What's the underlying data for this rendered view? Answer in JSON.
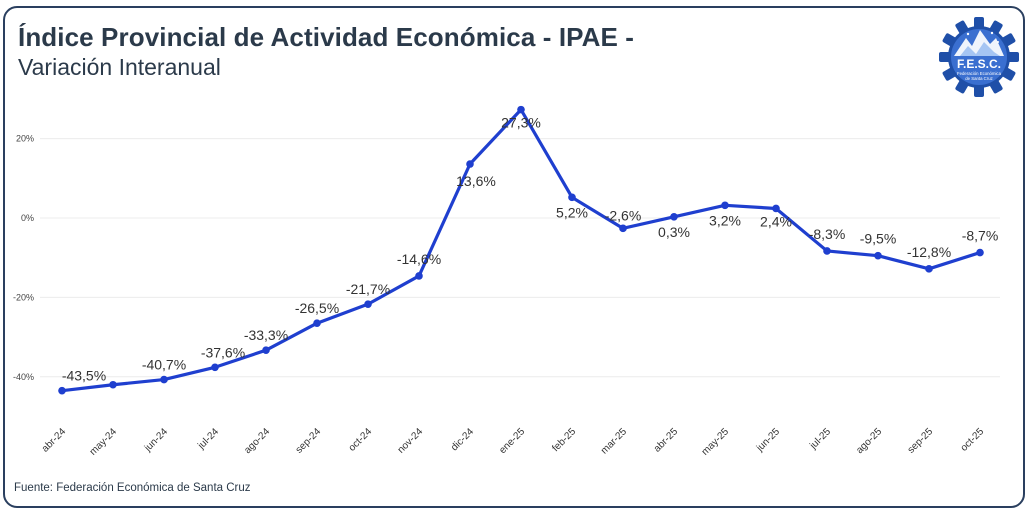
{
  "header": {
    "title": "Índice Provincial de Actividad Económica - IPAE -",
    "subtitle": "Variación Interanual"
  },
  "footer": {
    "source": "Fuente: Federación Económica de Santa Cruz"
  },
  "logo": {
    "abbr": "F.E.S.C.",
    "line1": "Federación Económica",
    "line2": "de Santa Cruz"
  },
  "colors": {
    "line": "#1f3fcf",
    "text": "#2b3a4a",
    "grid": "#ececec",
    "logo": "#1f4fa8"
  },
  "chart_data": {
    "type": "line",
    "title": "Índice Provincial de Actividad Económica - IPAE -",
    "subtitle": "Variación Interanual",
    "xlabel": "",
    "ylabel": "",
    "ylim": [
      -45,
      32
    ],
    "yticks": [
      20,
      0,
      -20,
      -40
    ],
    "ytick_labels": [
      "20%",
      "0%",
      "-20%",
      "-40%"
    ],
    "grid": true,
    "categories": [
      "abr-24",
      "may-24",
      "jun-24",
      "jul-24",
      "ago-24",
      "sep-24",
      "oct-24",
      "nov-24",
      "dic-24",
      "ene-25",
      "feb-25",
      "mar-25",
      "abr-25",
      "may-25",
      "jun-25",
      "jul-25",
      "ago-25",
      "sep-25",
      "oct-25"
    ],
    "series": [
      {
        "name": "Variación Interanual",
        "values": [
          -43.5,
          -42.0,
          -40.7,
          -37.6,
          -33.3,
          -26.5,
          -21.7,
          -14.6,
          13.6,
          27.3,
          5.2,
          -2.6,
          0.3,
          3.2,
          2.4,
          -8.3,
          -9.5,
          -12.8,
          -8.7
        ],
        "labels": [
          "-43,5%",
          "",
          "-40,7%",
          "-37,6%",
          "-33,3%",
          "-26,5%",
          "-21,7%",
          "-14,6%",
          "13,6%",
          "27,3%",
          "5,2%",
          "-2,6%",
          "0,3%",
          "3,2%",
          "2,4%",
          "-8,3%",
          "-9,5%",
          "-12,8%",
          "-8,7%"
        ]
      }
    ]
  }
}
